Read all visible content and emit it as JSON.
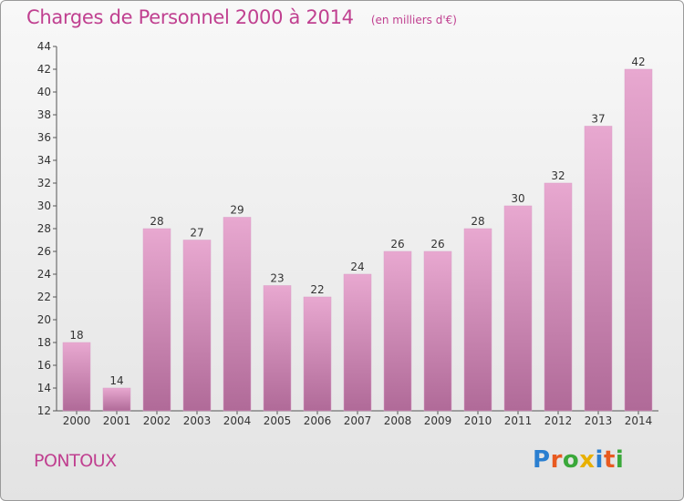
{
  "header": {
    "title": "Charges de Personnel 2000 à 2014",
    "subtitle": "(en milliers d'€)"
  },
  "footer": {
    "city": "PONTOUX",
    "logo": "Proxiti"
  },
  "colors": {
    "title": "#c04090",
    "bar_top": "#e8a8d0",
    "bar_bottom": "#b06a98",
    "logo": [
      "#2b7fd0",
      "#e85a20",
      "#3aa83a",
      "#e8b000",
      "#2b7fd0",
      "#e85a20",
      "#3aa83a"
    ]
  },
  "chart_data": {
    "type": "bar",
    "categories": [
      "2000",
      "2001",
      "2002",
      "2003",
      "2004",
      "2005",
      "2006",
      "2007",
      "2008",
      "2009",
      "2010",
      "2011",
      "2012",
      "2013",
      "2014"
    ],
    "values": [
      18,
      14,
      28,
      27,
      29,
      23,
      22,
      24,
      26,
      26,
      28,
      30,
      32,
      37,
      42
    ],
    "title": "Charges de Personnel 2000 à 2014",
    "ylim": [
      12,
      44
    ],
    "yticks": [
      12,
      14,
      16,
      18,
      20,
      22,
      24,
      26,
      28,
      30,
      32,
      34,
      36,
      38,
      40,
      42,
      44
    ],
    "data_labels": true,
    "grid": false
  }
}
